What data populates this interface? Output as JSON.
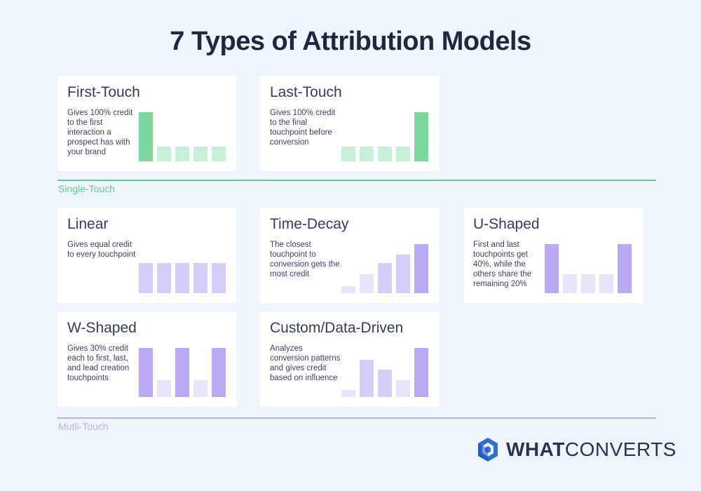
{
  "title": "7 Types of Attribution Models",
  "colors": {
    "single_strong": "#7fd7a0",
    "single_weak": "#c8f0d8",
    "multi_strong": "#bca9f4",
    "multi_mid": "#d6ccf8",
    "multi_weak": "#e9e4fc",
    "single_line": "#5fcb94",
    "multi_line": "#b9b0e6"
  },
  "sections": {
    "single": {
      "label": "Single-Touch"
    },
    "multi": {
      "label": "Mutli-Touch"
    }
  },
  "cards": [
    {
      "name": "First-Touch",
      "description": "Gives 100% credit to the first interaction a prospect has with your brand",
      "palette": "single",
      "bars": [
        100,
        30,
        30,
        30,
        30
      ]
    },
    {
      "name": "Last-Touch",
      "description": "Gives 100% credit to the final touchpoint before conversion",
      "palette": "single",
      "bars": [
        30,
        30,
        30,
        30,
        100
      ]
    },
    {
      "name": "Linear",
      "description": "Gives equal credit to every touchpoint",
      "palette": "multi",
      "bars": [
        62,
        62,
        62,
        62,
        62
      ]
    },
    {
      "name": "Time-Decay",
      "description": "The closest touchpoint to conversion gets the most credit",
      "palette": "multi",
      "bars": [
        14,
        38,
        62,
        78,
        100
      ]
    },
    {
      "name": "U-Shaped",
      "description": "First and last touchpoints get 40%, while the others share the remaining 20%",
      "palette": "multi",
      "bars": [
        100,
        38,
        38,
        38,
        100
      ]
    },
    {
      "name": "W-Shaped",
      "description": "Gives 30% credit each to first, last, and lead creation touchpoints",
      "palette": "multi",
      "bars": [
        100,
        34,
        100,
        34,
        100
      ]
    },
    {
      "name": "Custom/Data-Driven",
      "description": "Analyzes conversion patterns and gives credit based on influence",
      "palette": "multi",
      "bars": [
        14,
        76,
        55,
        34,
        100
      ]
    }
  ],
  "logo": {
    "bold": "WHAT",
    "light": "CONVERTS"
  }
}
